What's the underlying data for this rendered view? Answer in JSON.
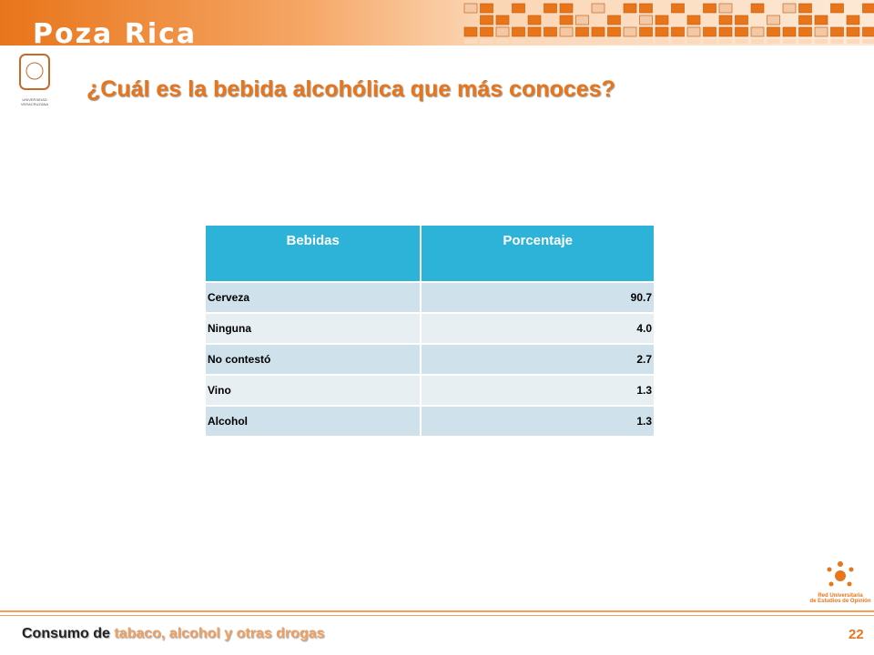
{
  "header": {
    "title": "Poza Rica",
    "logo_text": "UNIVERSIDAD VERACRUZANA"
  },
  "question": "¿Cuál es la bebida alcohólica que más conoces?",
  "table": {
    "columns": [
      "Bebidas",
      "Porcentaje"
    ],
    "rows": [
      [
        "Cerveza",
        "90.7"
      ],
      [
        "Ninguna",
        "4.0"
      ],
      [
        "No contestó",
        "2.7"
      ],
      [
        "Vino",
        "1.3"
      ],
      [
        "Alcohol",
        "1.3"
      ]
    ]
  },
  "footer": {
    "lead": "Consumo de",
    "topic": "tabaco, alcohol y otras drogas",
    "page": "22",
    "network": [
      "Red Universitaria",
      "de Estudios de Opinión"
    ]
  }
}
